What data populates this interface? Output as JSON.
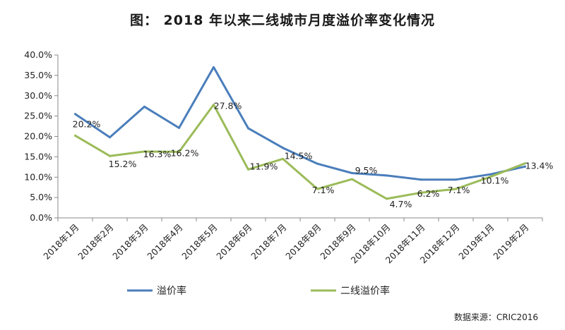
{
  "chart_data": {
    "type": "line",
    "title": "图：   2018 年以来二线城市月度溢价率变化情况",
    "categories": [
      "2018年1月",
      "2018年2月",
      "2018年3月",
      "2018年4月",
      "2018年5月",
      "2018年6月",
      "2018年7月",
      "2018年8月",
      "2018年9月",
      "2018年10月",
      "2018年11月",
      "2018年12月",
      "2019年1月",
      "2019年2月"
    ],
    "ylim": [
      0,
      40
    ],
    "yticks": [
      "0.0%",
      "5.0%",
      "10.0%",
      "15.0%",
      "20.0%",
      "25.0%",
      "30.0%",
      "35.0%",
      "40.0%"
    ],
    "grid": false,
    "legend_position": "bottom",
    "series": [
      {
        "name": "溢价率",
        "color": "#4a7ebb",
        "values": [
          25.5,
          19.8,
          27.3,
          22.1,
          37.0,
          22.0,
          17.2,
          13.3,
          11.0,
          10.4,
          9.4,
          9.4,
          10.7,
          12.6
        ]
      },
      {
        "name": "二线溢价率",
        "color": "#9bbb59",
        "values": [
          20.2,
          15.2,
          16.3,
          16.2,
          27.8,
          11.9,
          14.5,
          7.1,
          9.5,
          4.7,
          6.2,
          7.1,
          10.1,
          13.4
        ],
        "labels": [
          "20.2%",
          "15.2%",
          "16.3%",
          "16.2%",
          "27.8%",
          "11.9%",
          "14.5%",
          "7.1%",
          "9.5%",
          "4.7%",
          "6.2%",
          "7.1%",
          "10.1%",
          "13.4%"
        ]
      }
    ]
  },
  "source": "数据来源：CRIC2016"
}
